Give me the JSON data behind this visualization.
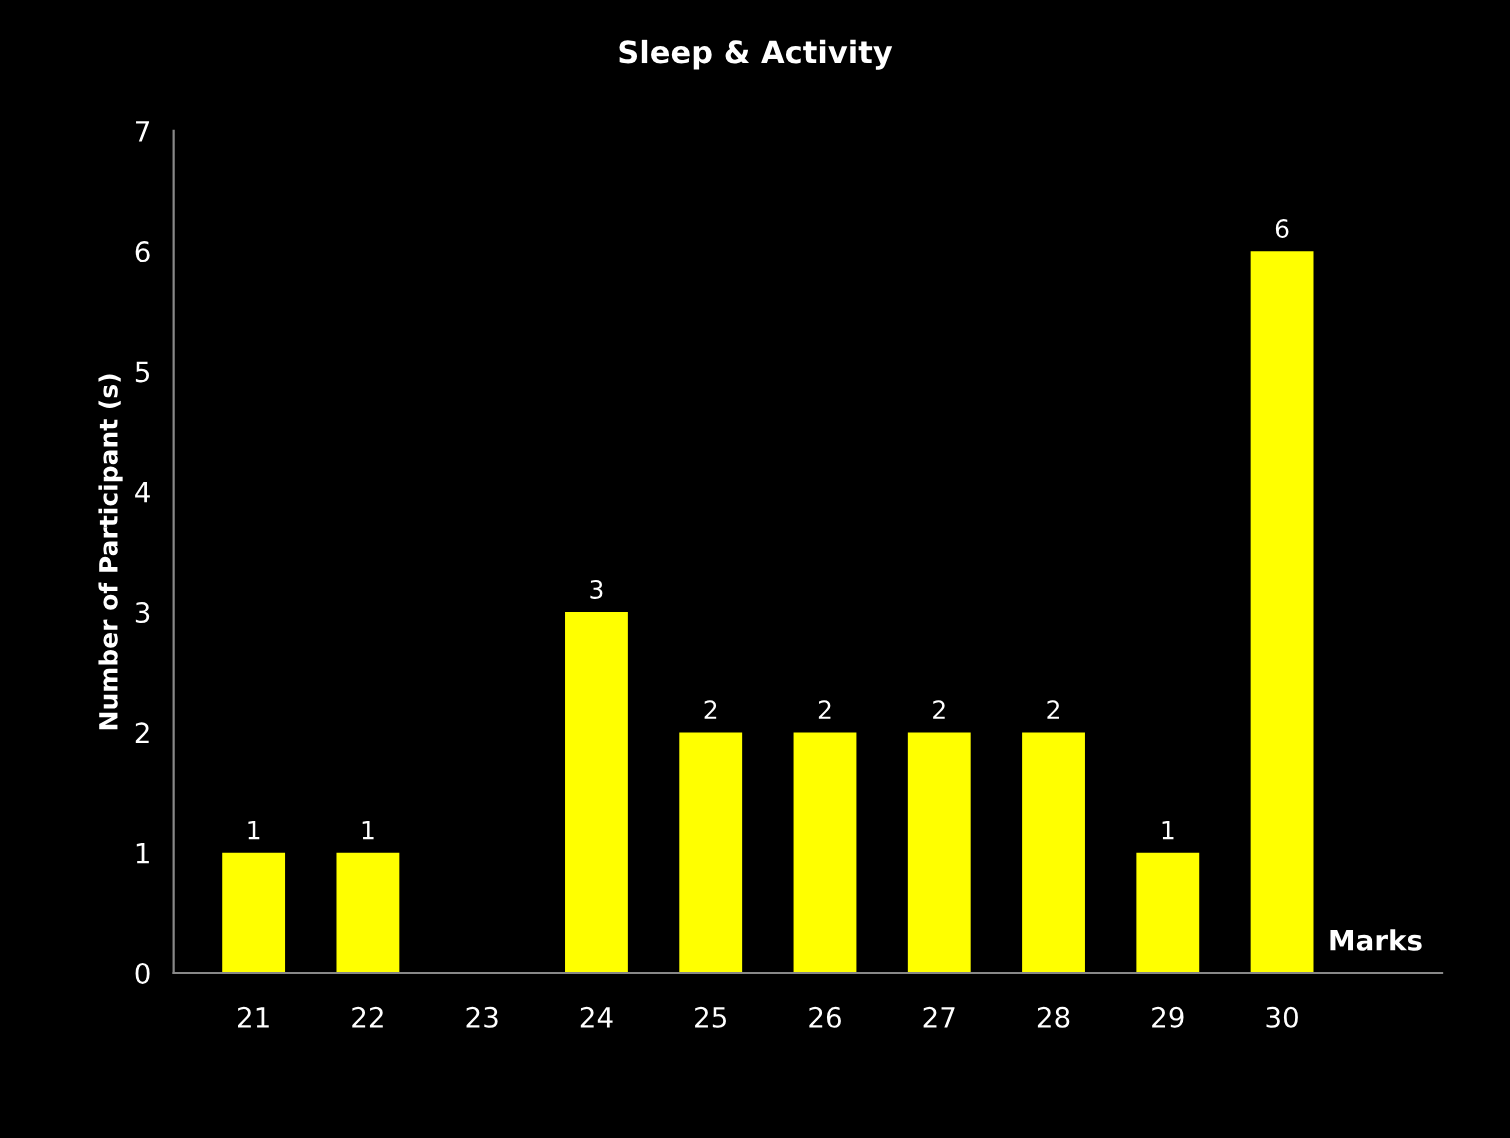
{
  "chart_data": {
    "type": "bar",
    "title": "Sleep & Activity",
    "xlabel": "Marks",
    "ylabel": "Number of Participant (s)",
    "categories": [
      "21",
      "22",
      "23",
      "24",
      "25",
      "26",
      "27",
      "28",
      "29",
      "30"
    ],
    "values": [
      1,
      1,
      0,
      3,
      2,
      2,
      2,
      2,
      1,
      6
    ],
    "value_labels": [
      "1",
      "1",
      null,
      "3",
      "2",
      "2",
      "2",
      "2",
      "1",
      "6"
    ],
    "color": "#ffff00",
    "ylim": [
      0,
      7
    ],
    "yticks": [
      0,
      1,
      2,
      3,
      4,
      5,
      6,
      7
    ],
    "grid": false,
    "legend": false
  }
}
